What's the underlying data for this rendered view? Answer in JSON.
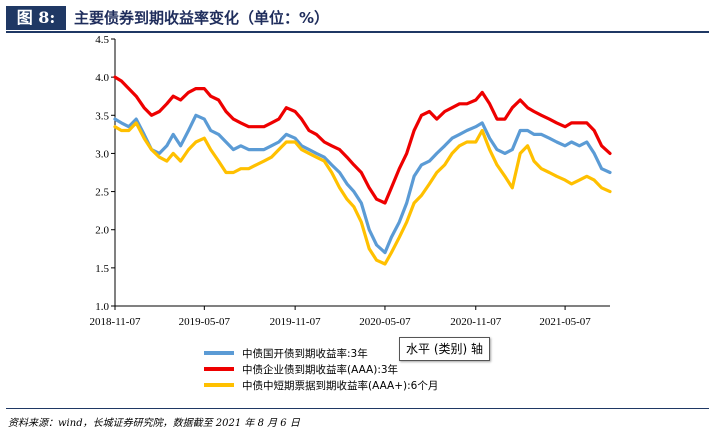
{
  "figure": {
    "label": "图 8:",
    "title": "主要债券到期收益率变化（单位：%）"
  },
  "tooltip": "水平 (类别) 轴",
  "source": "资料来源：wind，长城证券研究院，数据截至 2021 年 8 月 6 日",
  "chart_data": {
    "type": "line",
    "title": "",
    "xlabel": "",
    "ylabel": "",
    "x_ticks": [
      "2018-11-07",
      "2019-05-07",
      "2019-11-07",
      "2020-05-07",
      "2020-11-07",
      "2021-05-07"
    ],
    "x_range": [
      "2018-11-07",
      "2021-08-06"
    ],
    "ylim": [
      1.0,
      4.5
    ],
    "y_ticks": [
      "1.0",
      "1.5",
      "2.0",
      "2.5",
      "3.0",
      "3.5",
      "4.0",
      "4.5"
    ],
    "grid": false,
    "legend_position": "bottom-center",
    "series": [
      {
        "name": "中债国开债到期收益率:3年",
        "color": "#5b9bd5",
        "points": [
          [
            "2018-11-07",
            3.45
          ],
          [
            "2018-11-20",
            3.4
          ],
          [
            "2018-12-05",
            3.35
          ],
          [
            "2018-12-20",
            3.45
          ],
          [
            "2019-01-05",
            3.25
          ],
          [
            "2019-01-20",
            3.05
          ],
          [
            "2019-02-05",
            3.0
          ],
          [
            "2019-02-20",
            3.1
          ],
          [
            "2019-03-05",
            3.25
          ],
          [
            "2019-03-20",
            3.1
          ],
          [
            "2019-04-05",
            3.3
          ],
          [
            "2019-04-20",
            3.5
          ],
          [
            "2019-05-07",
            3.45
          ],
          [
            "2019-05-20",
            3.3
          ],
          [
            "2019-06-05",
            3.25
          ],
          [
            "2019-06-20",
            3.15
          ],
          [
            "2019-07-05",
            3.05
          ],
          [
            "2019-07-20",
            3.1
          ],
          [
            "2019-08-05",
            3.05
          ],
          [
            "2019-08-20",
            3.05
          ],
          [
            "2019-09-05",
            3.05
          ],
          [
            "2019-09-20",
            3.1
          ],
          [
            "2019-10-05",
            3.15
          ],
          [
            "2019-10-20",
            3.25
          ],
          [
            "2019-11-07",
            3.2
          ],
          [
            "2019-11-20",
            3.1
          ],
          [
            "2019-12-05",
            3.05
          ],
          [
            "2019-12-20",
            3.0
          ],
          [
            "2020-01-05",
            2.95
          ],
          [
            "2020-01-20",
            2.85
          ],
          [
            "2020-02-05",
            2.75
          ],
          [
            "2020-02-20",
            2.6
          ],
          [
            "2020-03-05",
            2.5
          ],
          [
            "2020-03-20",
            2.35
          ],
          [
            "2020-04-05",
            2.0
          ],
          [
            "2020-04-20",
            1.8
          ],
          [
            "2020-05-07",
            1.7
          ],
          [
            "2020-05-20",
            1.9
          ],
          [
            "2020-06-05",
            2.1
          ],
          [
            "2020-06-20",
            2.35
          ],
          [
            "2020-07-05",
            2.7
          ],
          [
            "2020-07-20",
            2.85
          ],
          [
            "2020-08-05",
            2.9
          ],
          [
            "2020-08-20",
            3.0
          ],
          [
            "2020-09-05",
            3.1
          ],
          [
            "2020-09-20",
            3.2
          ],
          [
            "2020-10-05",
            3.25
          ],
          [
            "2020-10-20",
            3.3
          ],
          [
            "2020-11-07",
            3.35
          ],
          [
            "2020-11-20",
            3.4
          ],
          [
            "2020-12-05",
            3.2
          ],
          [
            "2020-12-20",
            3.05
          ],
          [
            "2021-01-05",
            3.0
          ],
          [
            "2021-01-20",
            3.05
          ],
          [
            "2021-02-05",
            3.3
          ],
          [
            "2021-02-20",
            3.3
          ],
          [
            "2021-03-05",
            3.25
          ],
          [
            "2021-03-20",
            3.25
          ],
          [
            "2021-04-05",
            3.2
          ],
          [
            "2021-04-20",
            3.15
          ],
          [
            "2021-05-07",
            3.1
          ],
          [
            "2021-05-20",
            3.15
          ],
          [
            "2021-06-05",
            3.1
          ],
          [
            "2021-06-20",
            3.15
          ],
          [
            "2021-07-05",
            3.0
          ],
          [
            "2021-07-20",
            2.8
          ],
          [
            "2021-08-06",
            2.75
          ]
        ]
      },
      {
        "name": "中债企业债到期收益率(AAA):3年",
        "color": "#ee0000",
        "points": [
          [
            "2018-11-07",
            4.0
          ],
          [
            "2018-11-20",
            3.95
          ],
          [
            "2018-12-05",
            3.85
          ],
          [
            "2018-12-20",
            3.75
          ],
          [
            "2019-01-05",
            3.6
          ],
          [
            "2019-01-20",
            3.5
          ],
          [
            "2019-02-05",
            3.55
          ],
          [
            "2019-02-20",
            3.65
          ],
          [
            "2019-03-05",
            3.75
          ],
          [
            "2019-03-20",
            3.7
          ],
          [
            "2019-04-05",
            3.8
          ],
          [
            "2019-04-20",
            3.85
          ],
          [
            "2019-05-07",
            3.85
          ],
          [
            "2019-05-20",
            3.75
          ],
          [
            "2019-06-05",
            3.7
          ],
          [
            "2019-06-20",
            3.55
          ],
          [
            "2019-07-05",
            3.45
          ],
          [
            "2019-07-20",
            3.4
          ],
          [
            "2019-08-05",
            3.35
          ],
          [
            "2019-08-20",
            3.35
          ],
          [
            "2019-09-05",
            3.35
          ],
          [
            "2019-09-20",
            3.4
          ],
          [
            "2019-10-05",
            3.45
          ],
          [
            "2019-10-20",
            3.6
          ],
          [
            "2019-11-07",
            3.55
          ],
          [
            "2019-11-20",
            3.45
          ],
          [
            "2019-12-05",
            3.3
          ],
          [
            "2019-12-20",
            3.25
          ],
          [
            "2020-01-05",
            3.15
          ],
          [
            "2020-01-20",
            3.1
          ],
          [
            "2020-02-05",
            3.05
          ],
          [
            "2020-02-20",
            2.95
          ],
          [
            "2020-03-05",
            2.85
          ],
          [
            "2020-03-20",
            2.75
          ],
          [
            "2020-04-05",
            2.55
          ],
          [
            "2020-04-20",
            2.4
          ],
          [
            "2020-05-07",
            2.35
          ],
          [
            "2020-05-20",
            2.55
          ],
          [
            "2020-06-05",
            2.8
          ],
          [
            "2020-06-20",
            3.0
          ],
          [
            "2020-07-05",
            3.3
          ],
          [
            "2020-07-20",
            3.5
          ],
          [
            "2020-08-05",
            3.55
          ],
          [
            "2020-08-20",
            3.45
          ],
          [
            "2020-09-05",
            3.55
          ],
          [
            "2020-09-20",
            3.6
          ],
          [
            "2020-10-05",
            3.65
          ],
          [
            "2020-10-20",
            3.65
          ],
          [
            "2020-11-07",
            3.7
          ],
          [
            "2020-11-20",
            3.8
          ],
          [
            "2020-12-05",
            3.65
          ],
          [
            "2020-12-20",
            3.45
          ],
          [
            "2021-01-05",
            3.45
          ],
          [
            "2021-01-20",
            3.6
          ],
          [
            "2021-02-05",
            3.7
          ],
          [
            "2021-02-20",
            3.6
          ],
          [
            "2021-03-05",
            3.55
          ],
          [
            "2021-03-20",
            3.5
          ],
          [
            "2021-04-05",
            3.45
          ],
          [
            "2021-04-20",
            3.4
          ],
          [
            "2021-05-07",
            3.35
          ],
          [
            "2021-05-20",
            3.4
          ],
          [
            "2021-06-05",
            3.4
          ],
          [
            "2021-06-20",
            3.4
          ],
          [
            "2021-07-05",
            3.3
          ],
          [
            "2021-07-20",
            3.1
          ],
          [
            "2021-08-06",
            3.0
          ]
        ]
      },
      {
        "name": "中债中短期票据到期收益率(AAA+):6个月",
        "color": "#ffc000",
        "points": [
          [
            "2018-11-07",
            3.35
          ],
          [
            "2018-11-20",
            3.3
          ],
          [
            "2018-12-05",
            3.3
          ],
          [
            "2018-12-20",
            3.4
          ],
          [
            "2019-01-05",
            3.2
          ],
          [
            "2019-01-20",
            3.05
          ],
          [
            "2019-02-05",
            2.95
          ],
          [
            "2019-02-20",
            2.9
          ],
          [
            "2019-03-05",
            3.0
          ],
          [
            "2019-03-20",
            2.9
          ],
          [
            "2019-04-05",
            3.05
          ],
          [
            "2019-04-20",
            3.15
          ],
          [
            "2019-05-07",
            3.2
          ],
          [
            "2019-05-20",
            3.05
          ],
          [
            "2019-06-05",
            2.9
          ],
          [
            "2019-06-20",
            2.75
          ],
          [
            "2019-07-05",
            2.75
          ],
          [
            "2019-07-20",
            2.8
          ],
          [
            "2019-08-05",
            2.8
          ],
          [
            "2019-08-20",
            2.85
          ],
          [
            "2019-09-05",
            2.9
          ],
          [
            "2019-09-20",
            2.95
          ],
          [
            "2019-10-05",
            3.05
          ],
          [
            "2019-10-20",
            3.15
          ],
          [
            "2019-11-07",
            3.15
          ],
          [
            "2019-11-20",
            3.05
          ],
          [
            "2019-12-05",
            3.0
          ],
          [
            "2019-12-20",
            2.95
          ],
          [
            "2020-01-05",
            2.9
          ],
          [
            "2020-01-20",
            2.75
          ],
          [
            "2020-02-05",
            2.55
          ],
          [
            "2020-02-20",
            2.4
          ],
          [
            "2020-03-05",
            2.3
          ],
          [
            "2020-03-20",
            2.1
          ],
          [
            "2020-04-05",
            1.75
          ],
          [
            "2020-04-20",
            1.6
          ],
          [
            "2020-05-07",
            1.55
          ],
          [
            "2020-05-20",
            1.7
          ],
          [
            "2020-06-05",
            1.9
          ],
          [
            "2020-06-20",
            2.1
          ],
          [
            "2020-07-05",
            2.35
          ],
          [
            "2020-07-20",
            2.45
          ],
          [
            "2020-08-05",
            2.6
          ],
          [
            "2020-08-20",
            2.75
          ],
          [
            "2020-09-05",
            2.85
          ],
          [
            "2020-09-20",
            3.0
          ],
          [
            "2020-10-05",
            3.1
          ],
          [
            "2020-10-20",
            3.15
          ],
          [
            "2020-11-07",
            3.15
          ],
          [
            "2020-11-20",
            3.3
          ],
          [
            "2020-12-05",
            3.05
          ],
          [
            "2020-12-20",
            2.85
          ],
          [
            "2021-01-05",
            2.7
          ],
          [
            "2021-01-20",
            2.55
          ],
          [
            "2021-02-05",
            3.0
          ],
          [
            "2021-02-20",
            3.1
          ],
          [
            "2021-03-05",
            2.9
          ],
          [
            "2021-03-20",
            2.8
          ],
          [
            "2021-04-05",
            2.75
          ],
          [
            "2021-04-20",
            2.7
          ],
          [
            "2021-05-07",
            2.65
          ],
          [
            "2021-05-20",
            2.6
          ],
          [
            "2021-06-05",
            2.65
          ],
          [
            "2021-06-20",
            2.7
          ],
          [
            "2021-07-05",
            2.65
          ],
          [
            "2021-07-20",
            2.55
          ],
          [
            "2021-08-06",
            2.5
          ]
        ]
      }
    ]
  }
}
